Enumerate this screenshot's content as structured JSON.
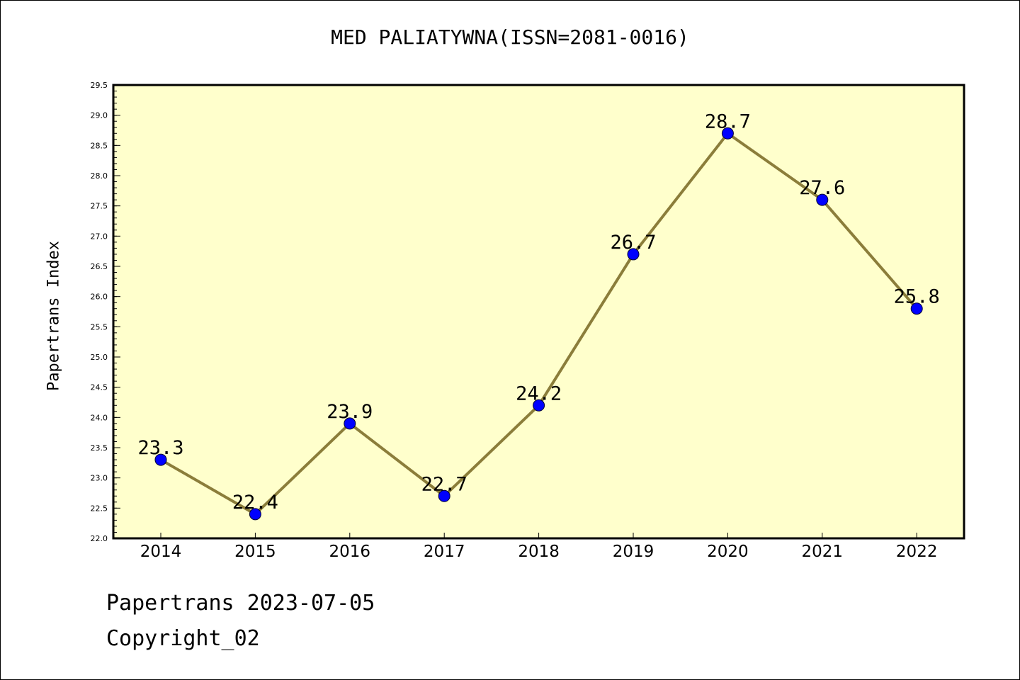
{
  "title": "MED PALIATYWNA(ISSN=2081-0016)",
  "footer": {
    "line1": "Papertrans 2023-07-05",
    "line2": "Copyright_02"
  },
  "colors": {
    "plot_background": "#ffffcc",
    "line": "#8b7d3a",
    "marker": "#0000ff",
    "axis": "#000000"
  },
  "chart_data": {
    "type": "line",
    "title": "MED PALIATYWNA(ISSN=2081-0016)",
    "xlabel": "",
    "ylabel": "Papertrans Index",
    "categories": [
      "2014",
      "2015",
      "2016",
      "2017",
      "2018",
      "2019",
      "2020",
      "2021",
      "2022"
    ],
    "values": [
      23.3,
      22.4,
      23.9,
      22.7,
      24.2,
      26.7,
      28.7,
      27.6,
      25.8
    ],
    "data_labels": [
      "23.3",
      "22.4",
      "23.9",
      "22.7",
      "24.2",
      "26.7",
      "28.7",
      "27.6",
      "25.8"
    ],
    "ylim": [
      22.0,
      29.5
    ],
    "yticks": [
      "22.0",
      "22.5",
      "23.0",
      "23.5",
      "24.0",
      "24.5",
      "25.0",
      "25.5",
      "26.0",
      "26.5",
      "27.0",
      "27.5",
      "28.0",
      "28.5",
      "29.0",
      "29.5"
    ],
    "grid": false,
    "legend": "none"
  }
}
